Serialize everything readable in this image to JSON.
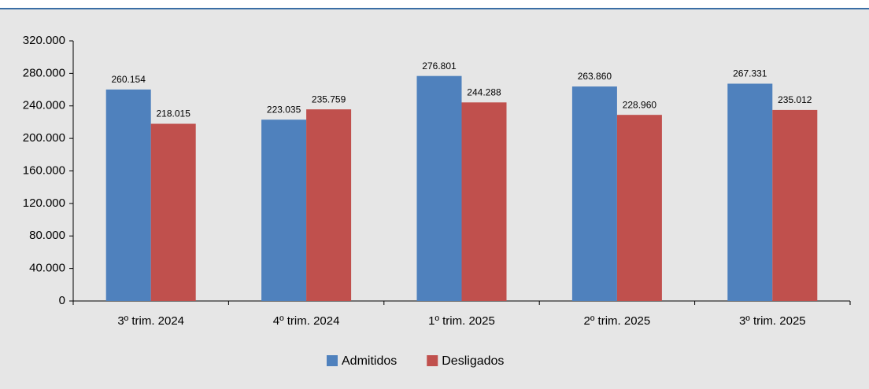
{
  "chart_data": {
    "type": "bar",
    "categories": [
      "3º trim. 2024",
      "4º trim. 2024",
      "1º trim. 2025",
      "2º trim. 2025",
      "3º trim. 2025"
    ],
    "series": [
      {
        "name": "Admitidos",
        "color": "#4f81bd",
        "values": [
          260154,
          223035,
          276801,
          263860,
          267331
        ],
        "value_labels": [
          "260.154",
          "223.035",
          "276.801",
          "263.860",
          "267.331"
        ]
      },
      {
        "name": "Desligados",
        "color": "#c0504d",
        "values": [
          218015,
          235759,
          244288,
          228960,
          235012
        ],
        "value_labels": [
          "218.015",
          "235.759",
          "244.288",
          "228.960",
          "235.012"
        ]
      }
    ],
    "ylim": [
      0,
      320000
    ],
    "yticks": [
      0,
      {
        "value": 40000,
        "label": "40.000"
      },
      {
        "value": 80000,
        "label": "80.000"
      },
      {
        "value": 120000,
        "label": "120.000"
      },
      {
        "value": 160000,
        "label": "160.000"
      },
      {
        "value": 200000,
        "label": "200.000"
      },
      {
        "value": 240000,
        "label": "240.000"
      },
      {
        "value": 280000,
        "label": "280.000"
      },
      {
        "value": 320000,
        "label": "320.000"
      }
    ],
    "legend": "bottom",
    "grid": false
  }
}
